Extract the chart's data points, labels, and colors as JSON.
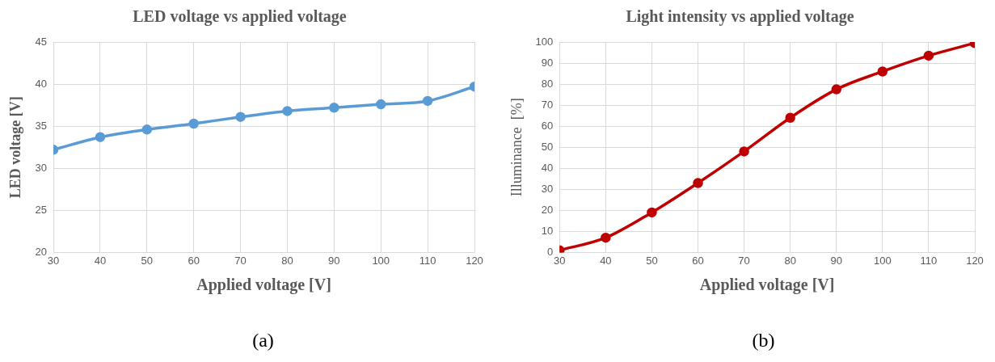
{
  "chart_data": [
    {
      "type": "line",
      "title": "LED voltage vs applied voltage",
      "xlabel": "Applied voltage [V]",
      "ylabel": "LED voltage [V]",
      "x": [
        30,
        40,
        50,
        60,
        70,
        80,
        90,
        100,
        110,
        120
      ],
      "series": [
        {
          "color": "#5b9bd5",
          "values": [
            32.2,
            33.7,
            34.6,
            35.3,
            36.1,
            36.8,
            37.2,
            37.6,
            38.0,
            39.7
          ]
        }
      ],
      "xlim": [
        30,
        120
      ],
      "xticks": [
        30,
        40,
        50,
        60,
        70,
        80,
        90,
        100,
        110,
        120
      ],
      "ylim": [
        20,
        45
      ],
      "yticks": [
        20,
        25,
        30,
        35,
        40,
        45
      ],
      "grid": true,
      "marker": "circle",
      "line_style": "solid",
      "legend": false,
      "annotations": [
        "(a)"
      ]
    },
    {
      "type": "line",
      "title": "Light intensity vs applied voltage",
      "xlabel": "Applied voltage [V]",
      "ylabel": "Illuminance  [%]",
      "x": [
        30,
        40,
        50,
        60,
        70,
        80,
        90,
        100,
        110,
        120
      ],
      "series": [
        {
          "color": "#c00000",
          "values": [
            1,
            7,
            19,
            33,
            48,
            64,
            77.5,
            86,
            93.5,
            99.5
          ]
        }
      ],
      "xlim": [
        30,
        120
      ],
      "xticks": [
        30,
        40,
        50,
        60,
        70,
        80,
        90,
        100,
        110,
        120
      ],
      "ylim": [
        0,
        100
      ],
      "yticks": [
        0,
        10,
        20,
        30,
        40,
        50,
        60,
        70,
        80,
        90,
        100
      ],
      "grid": true,
      "marker": "circle",
      "line_style": "solid",
      "legend": false,
      "annotations": [
        "(b)"
      ]
    }
  ]
}
